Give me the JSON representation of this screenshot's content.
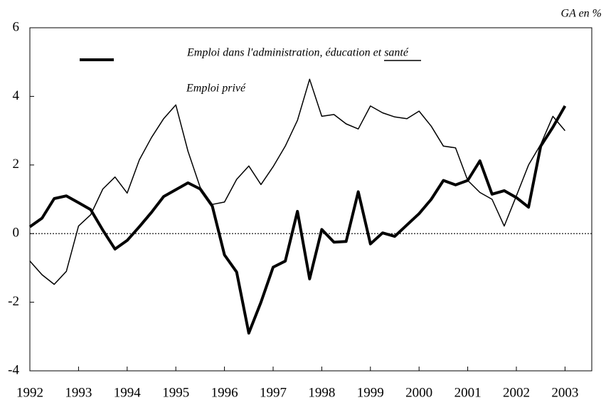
{
  "chart_data": {
    "type": "line",
    "unit_label": "GA en %",
    "x": [
      1992,
      1992.25,
      1992.5,
      1992.75,
      1993,
      1993.25,
      1993.5,
      1993.75,
      1994,
      1994.25,
      1994.5,
      1994.75,
      1995,
      1995.25,
      1995.5,
      1995.75,
      1996,
      1996.25,
      1996.5,
      1996.75,
      1997,
      1997.25,
      1997.5,
      1997.75,
      1998,
      1998.25,
      1998.5,
      1998.75,
      1999,
      1999.25,
      1999.5,
      1999.75,
      2000,
      2000.25,
      2000.5,
      2000.75,
      2001,
      2001.25,
      2001.5,
      2001.75,
      2002,
      2002.25,
      2002.5,
      2002.75,
      2003
    ],
    "series": [
      {
        "name": "Emploi dans l'administration, éducation et santé",
        "color": "#000000",
        "width": 4,
        "values": [
          0.2,
          0.45,
          1.02,
          1.1,
          0.9,
          0.7,
          0.1,
          -0.45,
          -0.2,
          0.2,
          0.62,
          1.08,
          1.28,
          1.48,
          1.3,
          0.8,
          -0.62,
          -1.12,
          -2.9,
          -2.0,
          -0.98,
          -0.8,
          0.65,
          -1.32,
          0.12,
          -0.25,
          -0.23,
          1.22,
          -0.3,
          0.02,
          -0.08,
          0.25,
          0.58,
          1.0,
          1.55,
          1.42,
          1.55,
          2.12,
          1.15,
          1.25,
          1.05,
          0.77,
          2.55,
          3.1,
          3.72
        ]
      },
      {
        "name": "Emploi privé",
        "color": "#000000",
        "width": 1.5,
        "values": [
          -0.8,
          -1.2,
          -1.48,
          -1.1,
          0.22,
          0.55,
          1.3,
          1.65,
          1.18,
          2.15,
          2.8,
          3.35,
          3.75,
          2.4,
          1.35,
          0.85,
          0.92,
          1.58,
          1.97,
          1.43,
          1.95,
          2.55,
          3.3,
          4.5,
          3.42,
          3.47,
          3.2,
          3.05,
          3.72,
          3.52,
          3.4,
          3.35,
          3.57,
          3.13,
          2.55,
          2.5,
          1.55,
          1.2,
          1.0,
          0.22,
          1.1,
          2.0,
          2.6,
          3.42,
          3.0
        ]
      }
    ],
    "xlim": [
      1992,
      2003.55
    ],
    "xticks": [
      1992,
      1993,
      1994,
      1995,
      1996,
      1997,
      1998,
      1999,
      2000,
      2001,
      2002,
      2003
    ],
    "ylim": [
      -4,
      6
    ],
    "yticks": [
      -4,
      -2,
      0,
      2,
      4,
      6
    ],
    "zero_line": true,
    "grid": false
  }
}
